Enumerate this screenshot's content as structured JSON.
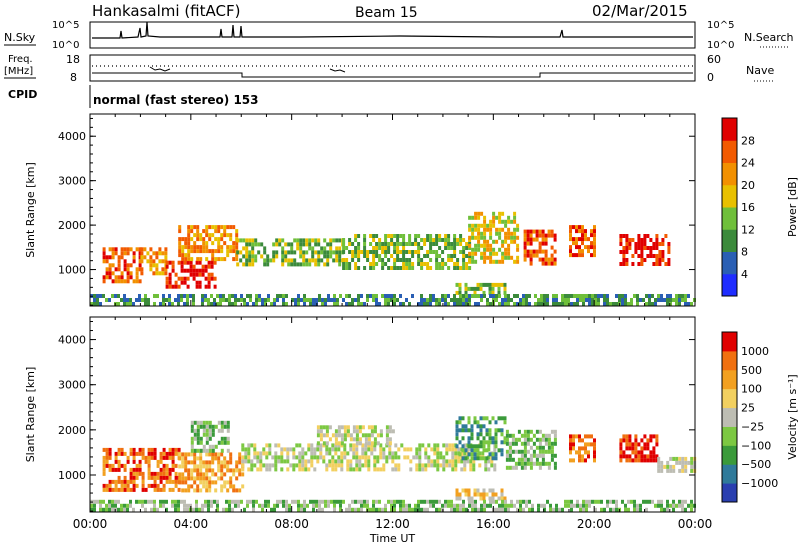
{
  "header": {
    "radar": "Hankasalmi (fitACF)",
    "beam": "Beam 15",
    "date": "02/Mar/2015"
  },
  "strip": {
    "nsky_label": "N.Sky",
    "nsearch_label": "N.Search",
    "nsky_ticks": [
      "10^5",
      "10^0"
    ],
    "nsearch_ticks": [
      "10^5",
      "10^0"
    ],
    "freq_label_1": "Freq.",
    "freq_label_2": "[MHz]",
    "freq_ticks": [
      "18",
      "8"
    ],
    "nave_label": "Nave",
    "nave_ticks": [
      "60",
      "0"
    ],
    "cpid_label": "CPID",
    "cpid_value": "normal (fast stereo) 153"
  },
  "chart_data": [
    {
      "type": "heatmap",
      "name": "power",
      "ylabel": "Slant Range [km]",
      "ylim": [
        180,
        4500
      ],
      "yticks": [
        "1000",
        "2000",
        "3000",
        "4000"
      ],
      "xlim": [
        0,
        24
      ],
      "colorbar_label": "Power [dB]",
      "colorbar_ticks": [
        "4",
        "8",
        "12",
        "16",
        "20",
        "24",
        "28"
      ],
      "colors": [
        "#1f2dff",
        "#2a5fb4",
        "#3b8a3b",
        "#6fbf3a",
        "#e8c000",
        "#f29000",
        "#f25a00",
        "#e00000"
      ],
      "patches": [
        {
          "t0": 0.5,
          "t1": 2.0,
          "r0": 750,
          "r1": 1500,
          "level": 6
        },
        {
          "t0": 2.0,
          "t1": 3.0,
          "r0": 900,
          "r1": 1500,
          "level": 5
        },
        {
          "t0": 3.0,
          "t1": 5.0,
          "r0": 650,
          "r1": 1200,
          "level": 7
        },
        {
          "t0": 3.5,
          "t1": 5.8,
          "r0": 1200,
          "r1": 2000,
          "level": 5
        },
        {
          "t0": 5.8,
          "t1": 10.0,
          "r0": 1100,
          "r1": 1700,
          "level": 3
        },
        {
          "t0": 10.0,
          "t1": 15.0,
          "r0": 1000,
          "r1": 1800,
          "level": 3
        },
        {
          "t0": 15.0,
          "t1": 17.0,
          "r0": 1200,
          "r1": 2300,
          "level": 4
        },
        {
          "t0": 17.2,
          "t1": 18.5,
          "r0": 1100,
          "r1": 1900,
          "level": 6
        },
        {
          "t0": 19.0,
          "t1": 20.0,
          "r0": 1300,
          "r1": 2000,
          "level": 6
        },
        {
          "t0": 21.0,
          "t1": 23.0,
          "r0": 1100,
          "r1": 1800,
          "level": 7
        },
        {
          "t0": 14.5,
          "t1": 16.5,
          "r0": 450,
          "r1": 700,
          "level": 3
        },
        {
          "t0": 0.0,
          "t1": 24.0,
          "r0": 200,
          "r1": 450,
          "level": 2
        }
      ]
    },
    {
      "type": "heatmap",
      "name": "velocity",
      "ylabel": "Slant Range [km]",
      "ylim": [
        180,
        4500
      ],
      "yticks": [
        "1000",
        "2000",
        "3000",
        "4000"
      ],
      "xlim": [
        0,
        24
      ],
      "xlabel": "Time UT",
      "xticks": [
        "00:00",
        "04:00",
        "08:00",
        "12:00",
        "16:00",
        "20:00",
        "00:00"
      ],
      "colorbar_label": "Velocity [m s⁻¹]",
      "colorbar_ticks": [
        "1000",
        "500",
        "100",
        "25",
        "−25",
        "−100",
        "−500",
        "−1000"
      ],
      "colors": [
        "#2a3fb0",
        "#2f7a9a",
        "#3a9a3a",
        "#7cc842",
        "#bdbdb3",
        "#f2d060",
        "#f2a020",
        "#f07010",
        "#e00000"
      ],
      "patches": [
        {
          "t0": 0.5,
          "t1": 3.5,
          "r0": 700,
          "r1": 1600,
          "level": 7
        },
        {
          "t0": 3.5,
          "t1": 6.0,
          "r0": 700,
          "r1": 1500,
          "level": 6
        },
        {
          "t0": 4.0,
          "t1": 5.5,
          "r0": 1500,
          "r1": 2200,
          "level": 3
        },
        {
          "t0": 6.0,
          "t1": 16.0,
          "r0": 1100,
          "r1": 1700,
          "level": 4
        },
        {
          "t0": 9.0,
          "t1": 12.0,
          "r0": 1700,
          "r1": 2100,
          "level": 4
        },
        {
          "t0": 14.5,
          "t1": 16.5,
          "r0": 1400,
          "r1": 2300,
          "level": 2
        },
        {
          "t0": 16.5,
          "t1": 18.5,
          "r0": 1200,
          "r1": 2000,
          "level": 3
        },
        {
          "t0": 19.0,
          "t1": 20.0,
          "r0": 1300,
          "r1": 1900,
          "level": 7
        },
        {
          "t0": 21.0,
          "t1": 22.5,
          "r0": 1300,
          "r1": 1900,
          "level": 8
        },
        {
          "t0": 22.5,
          "t1": 24.0,
          "r0": 1100,
          "r1": 1400,
          "level": 4
        },
        {
          "t0": 14.5,
          "t1": 16.5,
          "r0": 450,
          "r1": 700,
          "level": 5
        },
        {
          "t0": 0.0,
          "t1": 24.0,
          "r0": 200,
          "r1": 450,
          "level": 3
        }
      ]
    }
  ]
}
